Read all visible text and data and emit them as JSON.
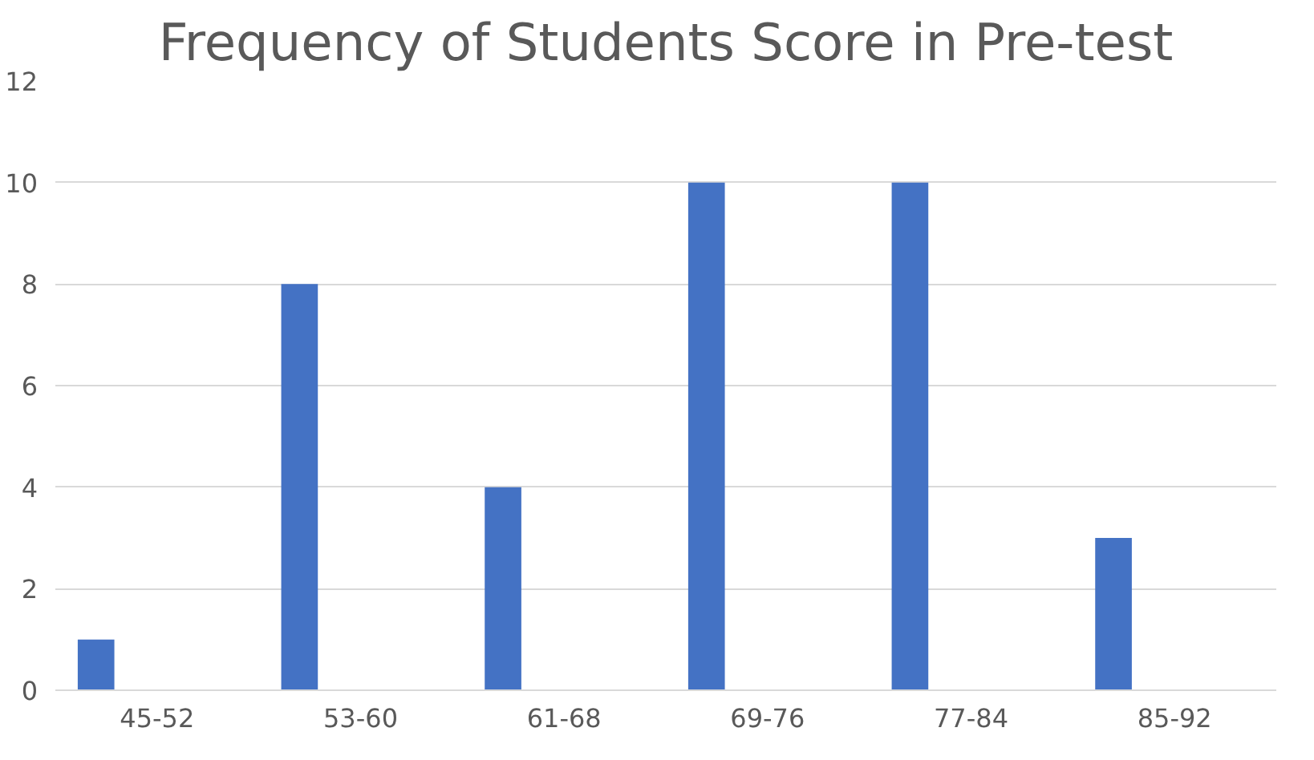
{
  "chart_data": {
    "type": "bar",
    "title": "Frequency of Students Score in Pre-test",
    "categories": [
      "45-52",
      "53-60",
      "61-68",
      "69-76",
      "77-84",
      "85-92"
    ],
    "values": [
      1,
      8,
      4,
      10,
      10,
      3
    ],
    "color": "#4472c4",
    "ylim": [
      0,
      12
    ],
    "yticks": [
      0,
      2,
      4,
      6,
      8,
      10,
      12
    ],
    "grid": "y"
  }
}
